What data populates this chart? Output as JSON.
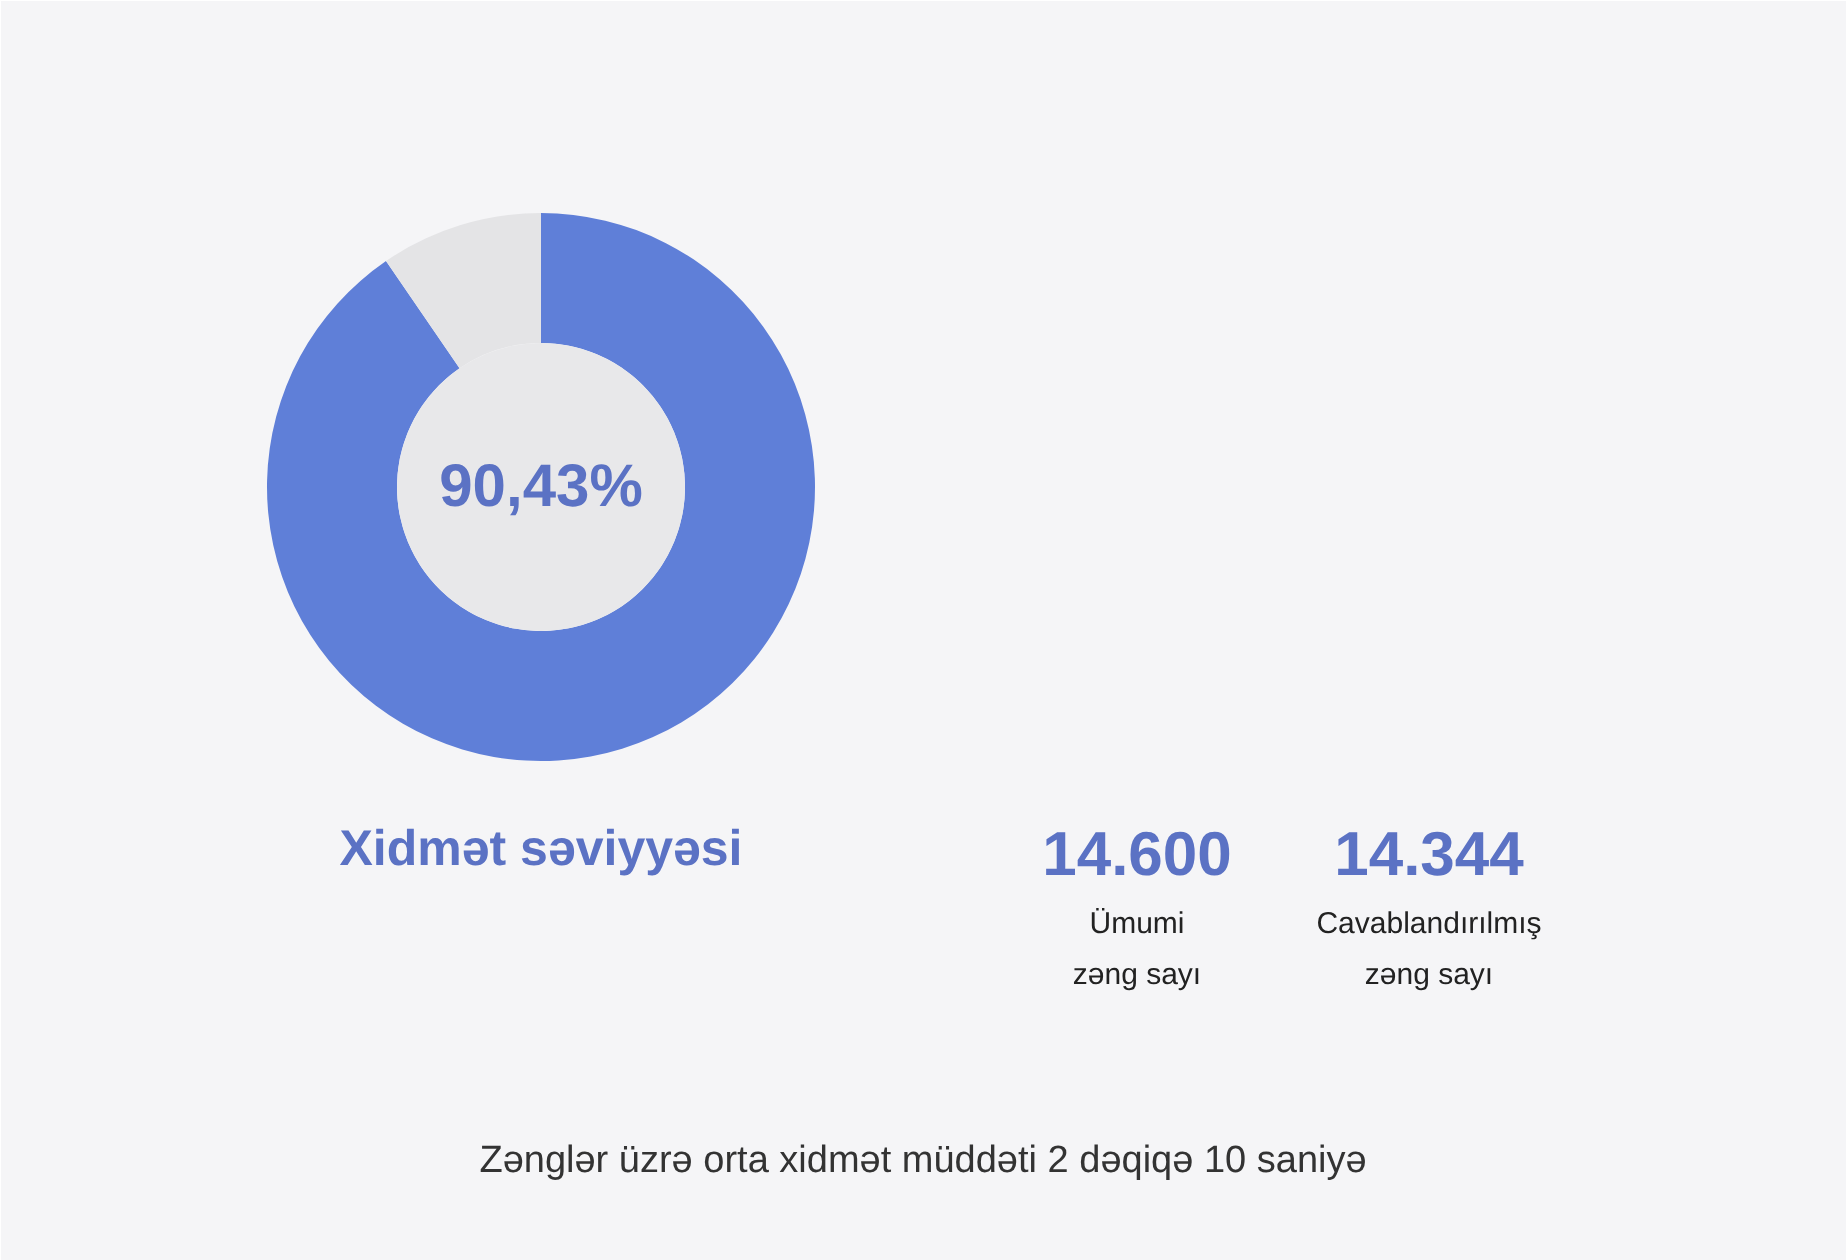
{
  "chart_data": {
    "type": "donut",
    "title": "Xidmət səviyyəsi",
    "categories": [
      null,
      null
    ],
    "values": [
      90.43,
      9.57
    ],
    "colors": [
      "#5f7fd8",
      "#e4e4e6"
    ],
    "annotations": [
      "90,43%",
      "14.600",
      "Ümumi\nzəng sayı",
      "14.344",
      "Cavablandırılmış\nzəng sayı",
      "Zənglər üzrə orta xidmət müddəti 2 dəqiqə 10 saniyə"
    ]
  }
}
